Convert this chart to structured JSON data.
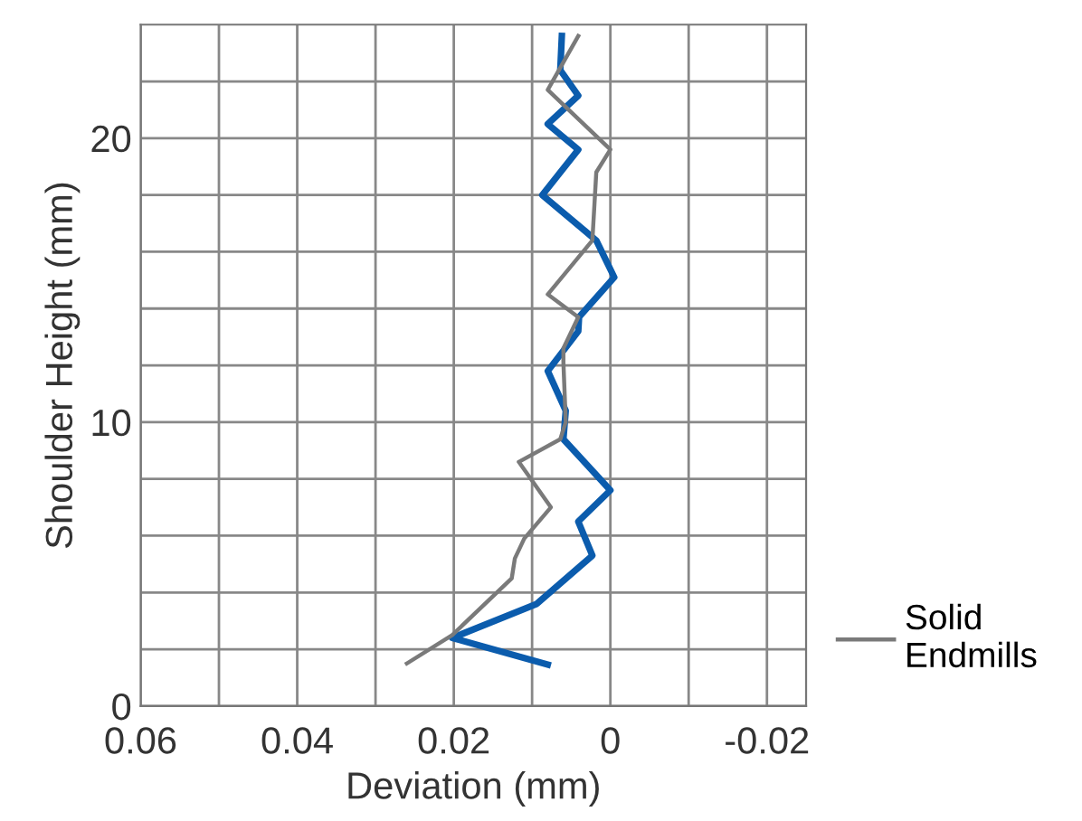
{
  "chart_data": {
    "type": "line",
    "xlabel": "Deviation (mm)",
    "ylabel": "Shoulder Height (mm)",
    "xlim": [
      0.06,
      -0.025
    ],
    "ylim": [
      0,
      24
    ],
    "xticks": [
      0.06,
      {
        "value": 0.05,
        "label": null
      },
      0.04,
      {
        "value": 0.03,
        "label": null
      },
      0.02,
      {
        "value": 0.01,
        "label": null
      },
      0,
      {
        "value": -0.01,
        "label": null
      },
      -0.02
    ],
    "yticks": [
      0,
      {
        "value": 2,
        "label": null
      },
      {
        "value": 4,
        "label": null
      },
      {
        "value": 6,
        "label": null
      },
      {
        "value": 8,
        "label": null
      },
      10,
      {
        "value": 12,
        "label": null
      },
      {
        "value": 14,
        "label": null
      },
      {
        "value": 16,
        "label": null
      },
      {
        "value": 18,
        "label": null
      },
      20,
      {
        "value": 22,
        "label": null
      }
    ],
    "grid": true,
    "legend": "bottom right",
    "marker": "none",
    "line_style": "solid",
    "series": [
      {
        "color": "#0b5cad",
        "x": [
          0.008,
          0.0202,
          0.0094,
          0.0023,
          0.0041,
          0.0,
          0.006,
          0.0057,
          0.008,
          0.0041,
          0.004,
          -0.0005,
          0.0018,
          0.0087,
          0.0041,
          0.008,
          0.0041,
          0.0064,
          0.0062
        ],
        "values": [
          1.46,
          2.4,
          3.6,
          5.3,
          6.5,
          7.6,
          9.4,
          10.4,
          11.8,
          13.2,
          13.7,
          15.1,
          16.4,
          18.0,
          19.6,
          20.5,
          21.5,
          22.4,
          23.6
        ]
      },
      {
        "name": "Solid\nEndmills",
        "color": "#7a7a7a",
        "x": [
          0.026,
          0.0202,
          0.0126,
          0.0122,
          0.011,
          0.0076,
          0.0117,
          0.0064,
          0.0057,
          0.006,
          0.006,
          0.0041,
          0.008,
          0.0023,
          0.0018,
          0.0,
          0.008,
          0.0041
        ],
        "values": [
          1.5,
          2.5,
          4.5,
          5.2,
          5.9,
          7.0,
          8.6,
          9.4,
          10.0,
          12.1,
          12.6,
          13.7,
          14.5,
          16.4,
          18.8,
          19.6,
          21.7,
          23.6
        ]
      }
    ]
  }
}
